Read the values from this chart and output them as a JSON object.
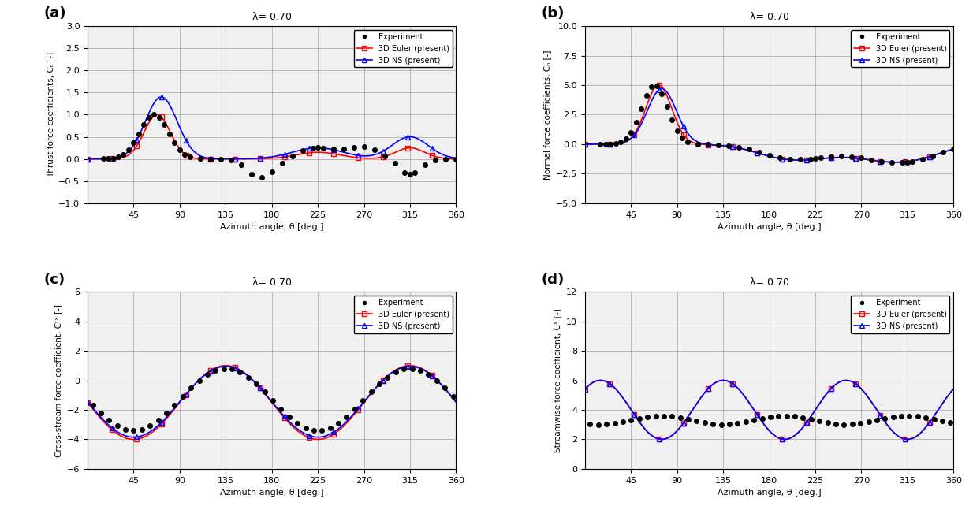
{
  "title": "λ= 0.70",
  "xlabel": "Azimuth angle, θ [deg.]",
  "panel_labels": [
    "(a)",
    "(b)",
    "(c)",
    "(d)"
  ],
  "xlim": [
    0,
    360
  ],
  "xticks": [
    45,
    90,
    135,
    180,
    225,
    270,
    315,
    360
  ],
  "subplot_a": {
    "ylabel": "Thrust force coefficients, Cₜ [-]",
    "ylim": [
      -1,
      3
    ],
    "yticks": [
      -1,
      -0.5,
      0,
      0.5,
      1,
      1.5,
      2,
      2.5,
      3
    ]
  },
  "subplot_b": {
    "ylabel": "Normal force coefficients, Cₙ [-]",
    "ylim": [
      -5,
      10
    ],
    "yticks": [
      -5,
      -2.5,
      0,
      2.5,
      5,
      7.5,
      10
    ]
  },
  "subplot_c": {
    "ylabel": "Cross-stream force coefficient, Cᶠˣ [-]",
    "ylim": [
      -6,
      6
    ],
    "yticks": [
      -6,
      -4,
      -2,
      0,
      2,
      4,
      6
    ]
  },
  "subplot_d": {
    "ylabel": "Streamwise force coefficient, Cˣ [-]",
    "ylim": [
      0,
      12
    ],
    "yticks": [
      0,
      2,
      4,
      6,
      8,
      10,
      12
    ]
  },
  "euler_color": "#FF0000",
  "ns_color": "#0000FF",
  "exp_color": "#000000",
  "legend_entries": [
    "Experiment",
    "3D Euler (present)",
    "3D NS (present)"
  ]
}
